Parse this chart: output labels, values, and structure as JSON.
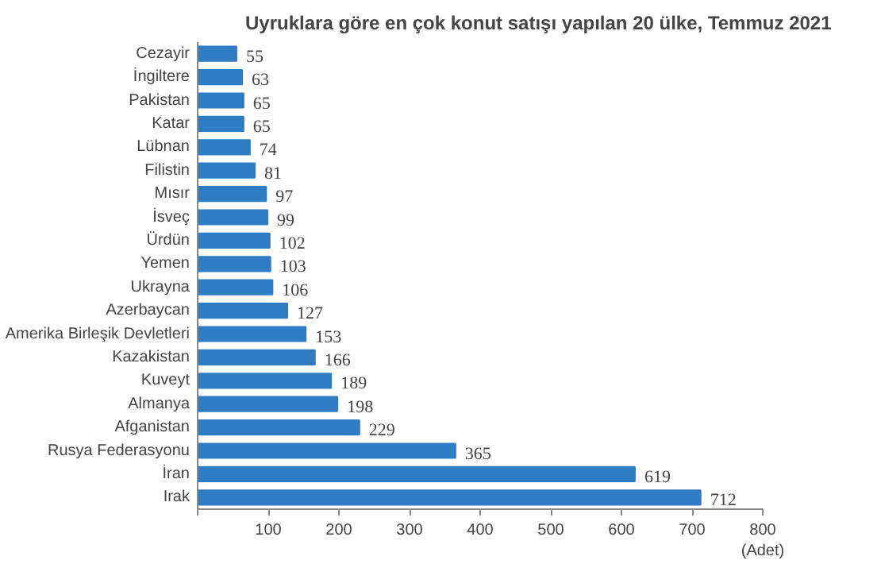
{
  "chart_data": {
    "type": "bar",
    "orientation": "horizontal",
    "title": "Uyruklara göre en çok konut satışı yapılan 20 ülke, Temmuz 2021",
    "xlabel": "(Adet)",
    "categories": [
      "Cezayir",
      "İngiltere",
      "Pakistan",
      "Katar",
      "Lübnan",
      "Filistin",
      "Mısır",
      "İsveç",
      "Ürdün",
      "Yemen",
      "Ukrayna",
      "Azerbaycan",
      "Amerika Birleşik Devletleri",
      "Kazakistan",
      "Kuveyt",
      "Almanya",
      "Afganistan",
      "Rusya Federasyonu",
      "İran",
      "Irak"
    ],
    "values": [
      55,
      63,
      65,
      65,
      74,
      81,
      97,
      99,
      102,
      103,
      106,
      127,
      153,
      166,
      189,
      198,
      229,
      365,
      619,
      712
    ],
    "color": "#2e7dc4",
    "data_labels": true,
    "grid": false,
    "xlim": [
      0,
      800
    ],
    "xticks": [
      {
        "value": 0,
        "label": null
      },
      100,
      200,
      300,
      400,
      500,
      600,
      700,
      800
    ]
  }
}
